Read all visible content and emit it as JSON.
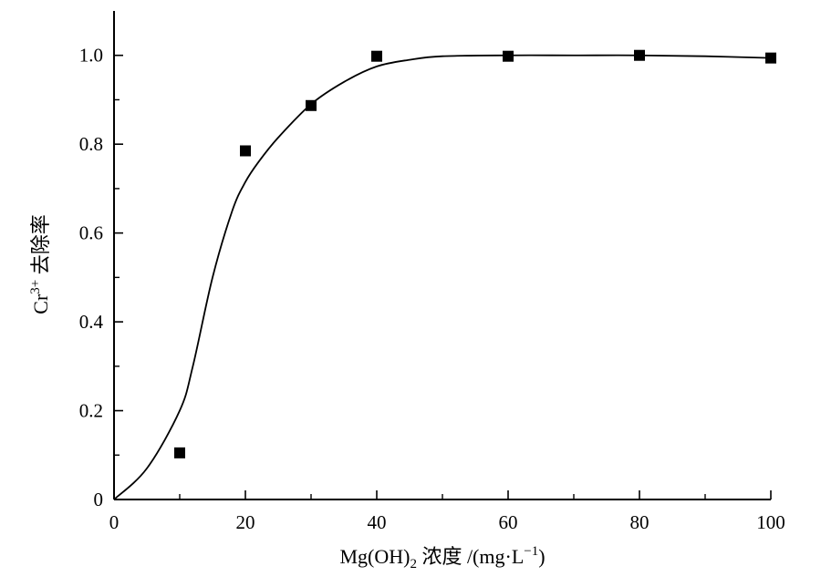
{
  "chart_data": {
    "type": "scatter",
    "xlabel": {
      "prefix": "Mg(OH)",
      "subscript": "2",
      "suffix": " 浓度 /(mg·L",
      "superscript": "−1",
      "close": ")"
    },
    "ylabel": {
      "prefix": "Cr",
      "superscript": "3+",
      "suffix": " 去除率"
    },
    "xlim": [
      0,
      100
    ],
    "ylim": [
      0,
      1.1
    ],
    "x_ticks": [
      0,
      20,
      40,
      60,
      80,
      100
    ],
    "x_tick_labels": [
      "0",
      "20",
      "40",
      "60",
      "80",
      "100"
    ],
    "x_minor_ticks": [
      10,
      30,
      50,
      70,
      90
    ],
    "y_ticks": [
      0,
      0.2,
      0.4,
      0.6,
      0.8,
      1.0
    ],
    "y_tick_labels": [
      "0",
      "0.2",
      "0.4",
      "0.6",
      "0.8",
      "1.0"
    ],
    "y_minor_ticks": [
      0.1,
      0.3,
      0.5,
      0.7,
      0.9
    ],
    "grid": false,
    "series": [
      {
        "type": "scatter",
        "marker": "square",
        "color": "#000000",
        "x": [
          10,
          20,
          30,
          40,
          60,
          80,
          100
        ],
        "y": [
          0.105,
          0.785,
          0.887,
          0.998,
          0.998,
          1.0,
          0.994
        ]
      },
      {
        "type": "line",
        "color": "#000000",
        "x": [
          0,
          5,
          10,
          12,
          15,
          18,
          20,
          22,
          25,
          30,
          35,
          40,
          45,
          50,
          60,
          70,
          80,
          90,
          100
        ],
        "y": [
          0.0,
          0.07,
          0.2,
          0.3,
          0.5,
          0.65,
          0.715,
          0.76,
          0.815,
          0.89,
          0.94,
          0.975,
          0.99,
          0.998,
          1.0,
          1.0,
          1.0,
          0.998,
          0.994
        ]
      }
    ]
  }
}
